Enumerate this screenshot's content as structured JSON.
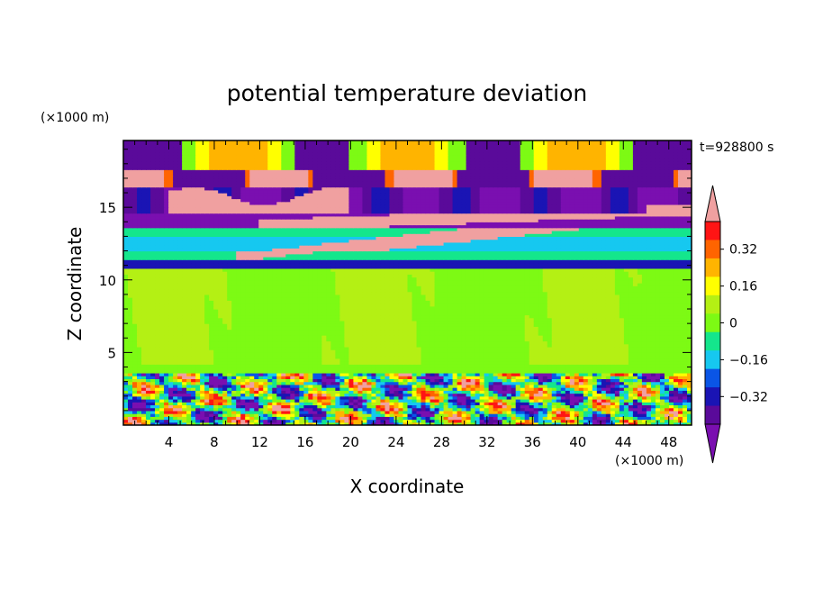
{
  "chart_data": {
    "type": "heatmap",
    "title": "potential temperature deviation",
    "xlabel": "X coordinate",
    "ylabel": "Z coordinate",
    "x_unit": "(×1000 m)",
    "y_unit": "(×1000 m)",
    "time_label": "t=928800 s",
    "xlim": [
      0,
      50
    ],
    "ylim": [
      0,
      19.6
    ],
    "xticks": [
      4,
      8,
      12,
      16,
      20,
      24,
      28,
      32,
      36,
      40,
      44,
      48
    ],
    "yticks": [
      5,
      10,
      15
    ],
    "colorbar": {
      "levels": [
        -0.48,
        -0.4,
        -0.32,
        -0.24,
        -0.16,
        -0.08,
        0,
        0.08,
        0.16,
        0.24,
        0.32,
        0.4,
        0.48
      ],
      "tick_labels": [
        0.32,
        0.16,
        0,
        -0.16,
        -0.32
      ],
      "colors_low_to_high": [
        "#7a0fb0",
        "#5a0a9a",
        "#1a14b4",
        "#0a55e6",
        "#16c8f0",
        "#14e68c",
        "#7dfa14",
        "#b4f014",
        "#ffff00",
        "#ffb400",
        "#ff6400",
        "#ff1414",
        "#f0a0a0"
      ]
    },
    "bands": [
      {
        "z_range": [
          0,
          3.6
        ],
        "description": "turbulent boundary layer, mixed values -0.4 to 0.48"
      },
      {
        "z_range": [
          3.6,
          10.8
        ],
        "values": [
          0,
          0.08
        ]
      },
      {
        "z_range": [
          10.8,
          11.5
        ],
        "values": [
          -0.16,
          -0.32
        ]
      },
      {
        "z_range": [
          11.5,
          13.6
        ],
        "values": [
          -0.24,
          0.48
        ]
      },
      {
        "z_range": [
          13.6,
          17.5
        ],
        "values": [
          -0.48,
          0.48
        ]
      },
      {
        "z_range": [
          17.5,
          19.6
        ],
        "values": [
          -0.4,
          0.3
        ]
      }
    ]
  }
}
